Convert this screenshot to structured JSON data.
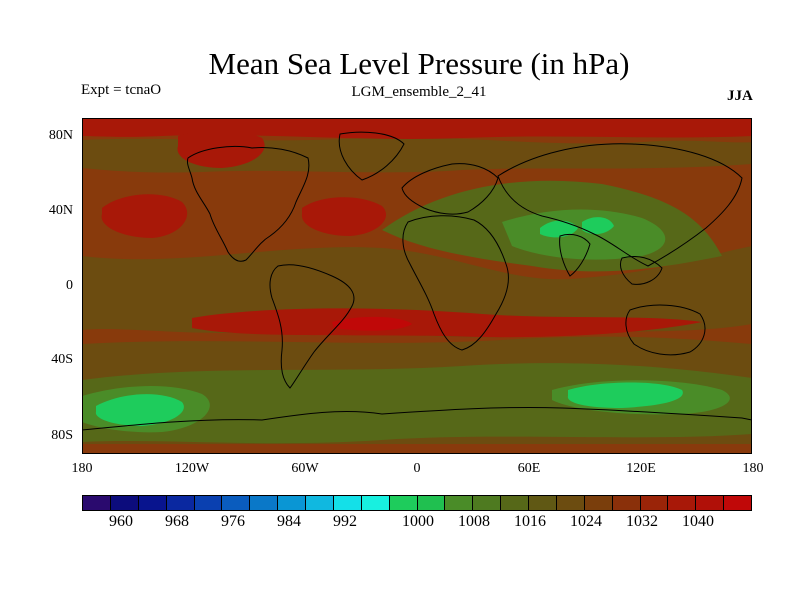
{
  "title": "Mean Sea Level Pressure (in hPa)",
  "left_label": "Expt = tcnaO",
  "center_label": "LGM_ensemble_2_41",
  "right_label": "JJA",
  "lat_labels": [
    "80N",
    "40N",
    "0",
    "40S",
    "80S"
  ],
  "lon_labels": [
    "180",
    "120W",
    "60W",
    "0",
    "60E",
    "120E",
    "180"
  ],
  "colorbar": {
    "colors": [
      "#2a0a6e",
      "#0c0c7c",
      "#08148e",
      "#0a28a0",
      "#0a40b0",
      "#0a5cbe",
      "#0a78c8",
      "#0a96d4",
      "#10b8e0",
      "#14e0e8",
      "#18f0e0",
      "#1ecc5c",
      "#20c050",
      "#4a8c28",
      "#4e7a20",
      "#566818",
      "#605814",
      "#6c4c10",
      "#7a3e0c",
      "#8a300a",
      "#9a2408",
      "#a81808",
      "#b01008",
      "#c00808"
    ],
    "labels": [
      "960",
      "968",
      "976",
      "984",
      "992",
      "1000",
      "1008",
      "1016",
      "1024",
      "1032",
      "1040"
    ]
  },
  "map_colors": {
    "base": "#883a0c",
    "high": "#a81808",
    "highest": "#c00808",
    "mid": "#6c4c10",
    "lowmid": "#566818",
    "low": "#4a8c28",
    "lowest": "#1ecc5c"
  }
}
